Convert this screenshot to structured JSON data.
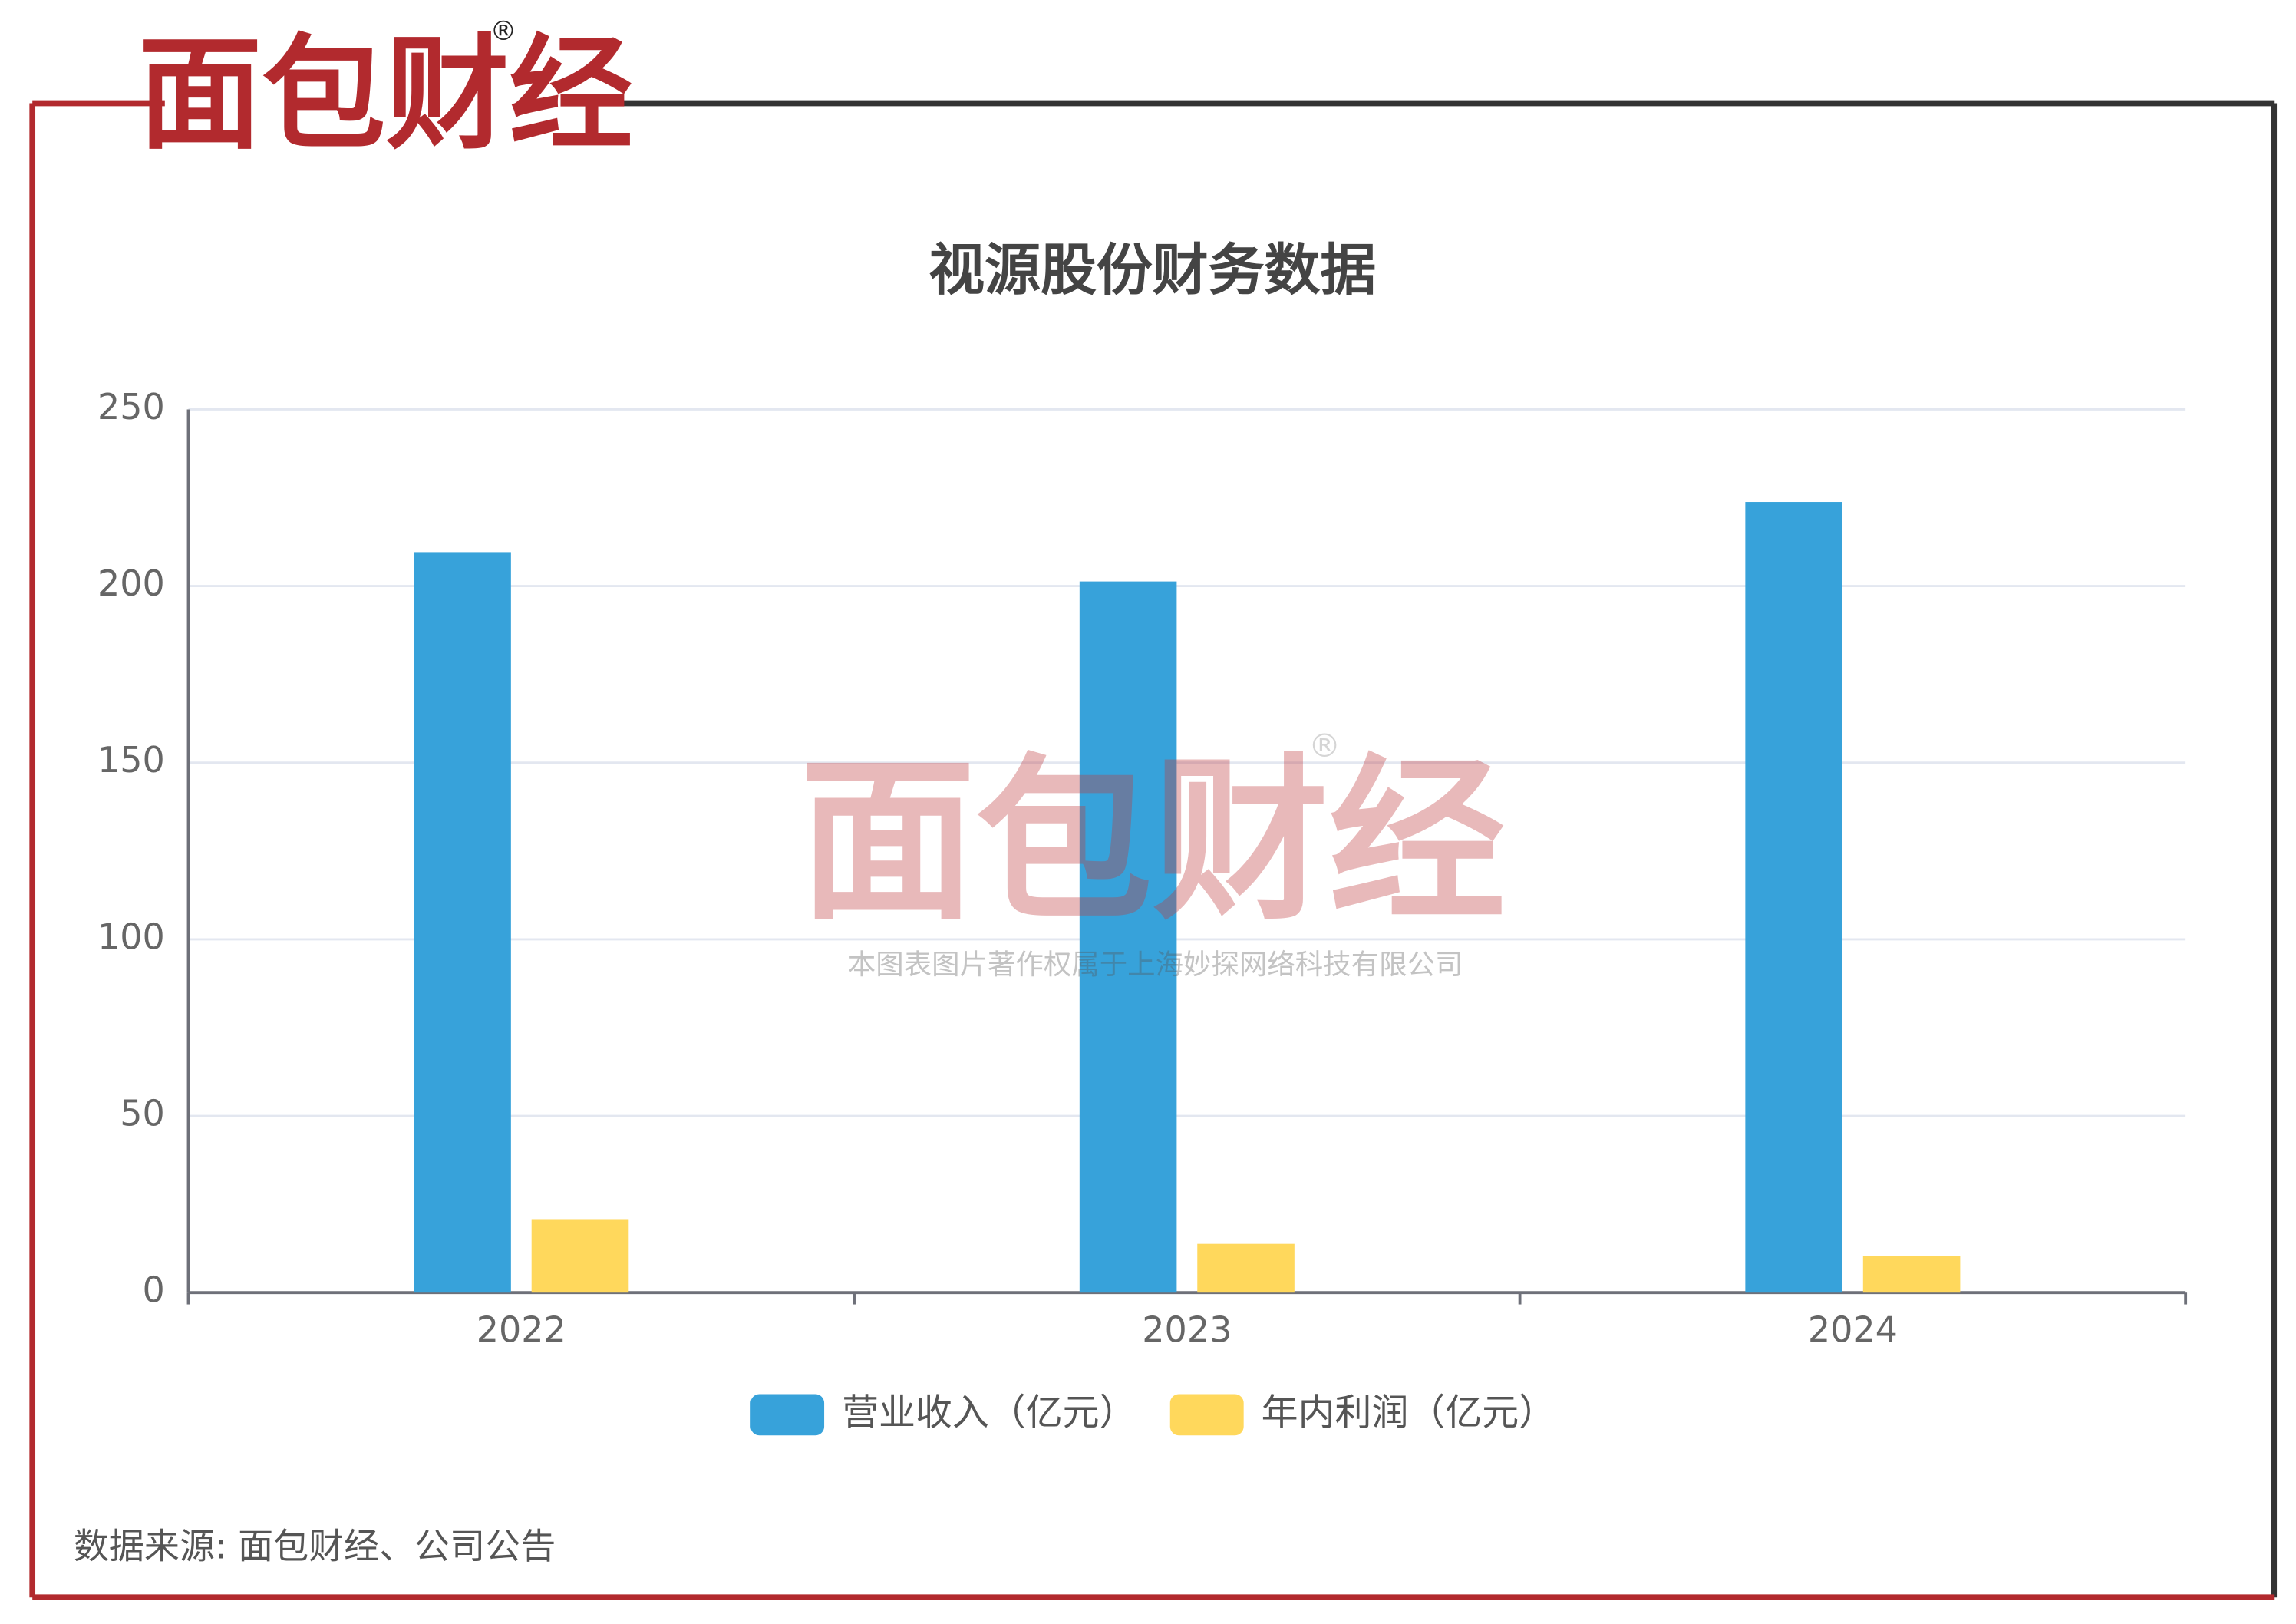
{
  "logo": {
    "name": "面包财经",
    "mark": "®"
  },
  "watermark": {
    "name": "面包财经",
    "mark": "®",
    "note": "本图表图片著作权属于上海妙探网络科技有限公司"
  },
  "source": "数据来源: 面包财经、公司公告",
  "chart_data": {
    "type": "bar",
    "title": "视源股份财务数据",
    "categories": [
      "2022",
      "2023",
      "2024"
    ],
    "series": [
      {
        "name": "营业收入（亿元）",
        "color": "#37a2da",
        "values": [
          209.6,
          201.3,
          223.8
        ]
      },
      {
        "name": "年内利润（亿元）",
        "color": "#ffd85c",
        "values": [
          20.8,
          13.8,
          10.4
        ]
      }
    ],
    "ylim": [
      0,
      250
    ],
    "yticks": [
      0,
      50,
      100,
      150,
      200,
      250
    ],
    "grid": true,
    "legend": "bottom"
  }
}
